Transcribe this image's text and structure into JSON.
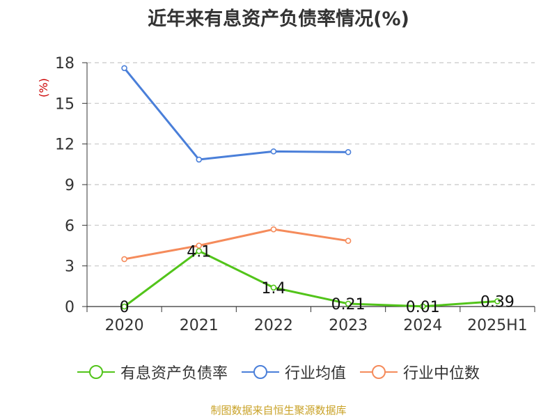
{
  "title": "近年来有息资产负债率情况(%)",
  "source": "制图数据来自恒生聚源数据库",
  "chart_data": {
    "type": "line",
    "title": "近年来有息资产负债率情况(%)",
    "ylabel": "(%)",
    "categories": [
      "2020",
      "2021",
      "2022",
      "2023",
      "2024",
      "2025H1"
    ],
    "ylim": [
      0,
      18
    ],
    "yticks": [
      0,
      3,
      6,
      9,
      12,
      15,
      18
    ],
    "grid": true,
    "legend_position": "bottom",
    "series": [
      {
        "name": "有息资产负债率",
        "color": "#52c41a",
        "values": [
          0,
          4.1,
          1.4,
          0.21,
          0.01,
          0.39
        ],
        "labels": [
          "0",
          "4.1",
          "1.4",
          "0.21",
          "0.01",
          "0.39"
        ]
      },
      {
        "name": "行业均值",
        "color": "#4a7fd9",
        "values": [
          17.6,
          10.85,
          11.45,
          11.4,
          null,
          null
        ]
      },
      {
        "name": "行业中位数",
        "color": "#f58b5b",
        "values": [
          3.5,
          4.5,
          5.7,
          4.85,
          null,
          null
        ]
      }
    ]
  }
}
